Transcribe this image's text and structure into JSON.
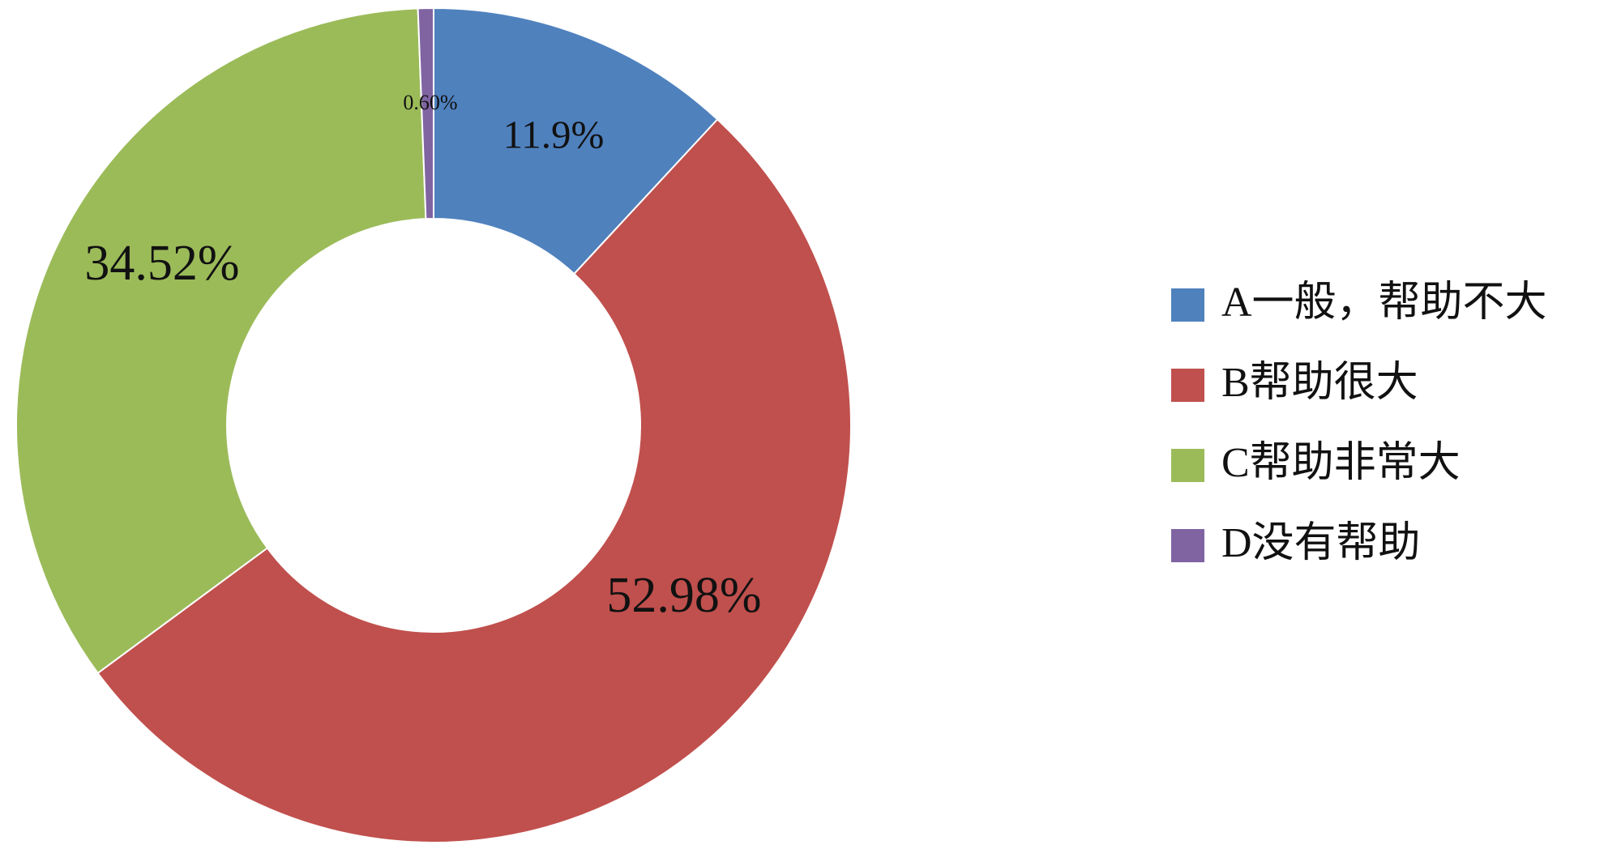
{
  "chart_data": {
    "type": "donut",
    "categories": [
      "A一般，帮助不大",
      "B帮助很大",
      "C帮助非常大",
      "D没有帮助"
    ],
    "values": [
      11.9,
      52.98,
      34.52,
      0.6
    ],
    "value_labels": [
      "11.9%",
      "52.98%",
      "34.52%",
      "0.60%"
    ],
    "colors": [
      "#4f81bd",
      "#c0504d",
      "#9bbb59",
      "#8064a2"
    ],
    "legend": "right"
  }
}
